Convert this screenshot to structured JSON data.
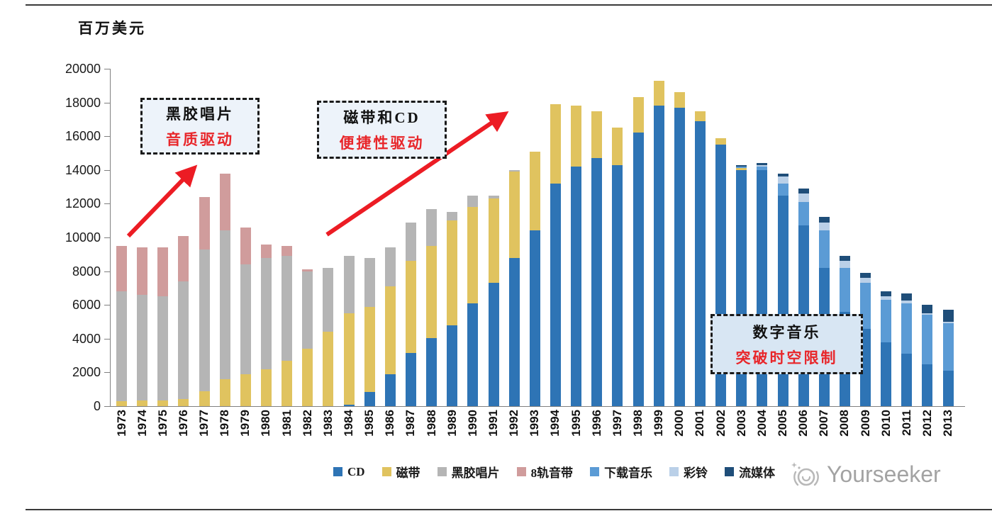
{
  "chart_data": {
    "type": "bar",
    "stacked": true,
    "title": "",
    "xlabel": "",
    "ylabel": "百万美元",
    "ylim": [
      0,
      20000
    ],
    "yticks": [
      0,
      2000,
      4000,
      6000,
      8000,
      10000,
      12000,
      14000,
      16000,
      18000,
      20000
    ],
    "grid": false,
    "legend_position": "bottom",
    "categories": [
      "1973",
      "1974",
      "1975",
      "1976",
      "1977",
      "1978",
      "1979",
      "1980",
      "1981",
      "1982",
      "1983",
      "1984",
      "1985",
      "1986",
      "1987",
      "1988",
      "1989",
      "1990",
      "1991",
      "1992",
      "1993",
      "1994",
      "1995",
      "1996",
      "1997",
      "1998",
      "1999",
      "2000",
      "2001",
      "2002",
      "2003",
      "2004",
      "2005",
      "2006",
      "2007",
      "2008",
      "2009",
      "2010",
      "2011",
      "2012",
      "2013"
    ],
    "series": [
      {
        "name": "CD",
        "color": "#2e74b5",
        "values": [
          0,
          0,
          0,
          0,
          0,
          0,
          0,
          0,
          0,
          0,
          0,
          100,
          850,
          1900,
          3150,
          4050,
          4800,
          6100,
          7300,
          8800,
          10400,
          13200,
          14200,
          14700,
          14300,
          16200,
          17800,
          17700,
          16900,
          15500,
          14000,
          14000,
          12500,
          10700,
          8200,
          5600,
          4600,
          3800,
          3100,
          2500,
          2100
        ]
      },
      {
        "name": "磁带",
        "color": "#e0c35f",
        "values": [
          300,
          350,
          350,
          400,
          900,
          1600,
          1900,
          2200,
          2700,
          3400,
          4400,
          5400,
          5050,
          5200,
          5450,
          5450,
          6200,
          5700,
          5000,
          5100,
          4700,
          4700,
          3600,
          2800,
          2200,
          2100,
          1500,
          900,
          600,
          400,
          100,
          0,
          0,
          0,
          0,
          0,
          0,
          0,
          0,
          0,
          0
        ]
      },
      {
        "name": "黑胶唱片",
        "color": "#b5b5b5",
        "values": [
          6500,
          6250,
          6150,
          7000,
          8400,
          8800,
          6500,
          6600,
          6200,
          4600,
          3800,
          3400,
          2900,
          2300,
          2300,
          2200,
          500,
          700,
          200,
          100,
          0,
          0,
          0,
          0,
          0,
          0,
          0,
          0,
          0,
          0,
          0,
          0,
          0,
          0,
          0,
          0,
          0,
          0,
          0,
          0,
          0
        ]
      },
      {
        "name": "8轨音带",
        "color": "#d09c9c",
        "values": [
          2700,
          2800,
          2900,
          2700,
          3100,
          3400,
          2200,
          800,
          600,
          100,
          0,
          0,
          0,
          0,
          0,
          0,
          0,
          0,
          0,
          0,
          0,
          0,
          0,
          0,
          0,
          0,
          0,
          0,
          0,
          0,
          0,
          0,
          0,
          0,
          0,
          0,
          0,
          0,
          0,
          0,
          0
        ]
      },
      {
        "name": "下载音乐",
        "color": "#5b9bd5",
        "values": [
          0,
          0,
          0,
          0,
          0,
          0,
          0,
          0,
          0,
          0,
          0,
          0,
          0,
          0,
          0,
          0,
          0,
          0,
          0,
          0,
          0,
          0,
          0,
          0,
          0,
          0,
          0,
          0,
          0,
          0,
          100,
          200,
          700,
          1400,
          2200,
          2600,
          2700,
          2500,
          3000,
          2900,
          2800
        ]
      },
      {
        "name": "彩铃",
        "color": "#bad0e8",
        "values": [
          0,
          0,
          0,
          0,
          0,
          0,
          0,
          0,
          0,
          0,
          0,
          0,
          0,
          0,
          0,
          0,
          0,
          0,
          0,
          0,
          0,
          0,
          0,
          0,
          0,
          0,
          0,
          0,
          0,
          0,
          0,
          100,
          400,
          500,
          500,
          400,
          300,
          200,
          150,
          100,
          100
        ]
      },
      {
        "name": "流媒体",
        "color": "#1f4e79",
        "values": [
          0,
          0,
          0,
          0,
          0,
          0,
          0,
          0,
          0,
          0,
          0,
          0,
          0,
          0,
          0,
          0,
          0,
          0,
          0,
          0,
          0,
          0,
          0,
          0,
          0,
          0,
          0,
          0,
          0,
          0,
          100,
          100,
          200,
          300,
          300,
          300,
          300,
          300,
          450,
          500,
          700
        ]
      }
    ]
  },
  "annotations": {
    "vinyl": {
      "line1": "黑胶唱片",
      "line2": "音质驱动"
    },
    "cassette_cd": {
      "line1": "磁带和CD",
      "line2": "便捷性驱动"
    },
    "digital": {
      "line1": "数字音乐",
      "line2": "突破时空限制"
    }
  },
  "watermark": {
    "text": "Yourseeker"
  }
}
